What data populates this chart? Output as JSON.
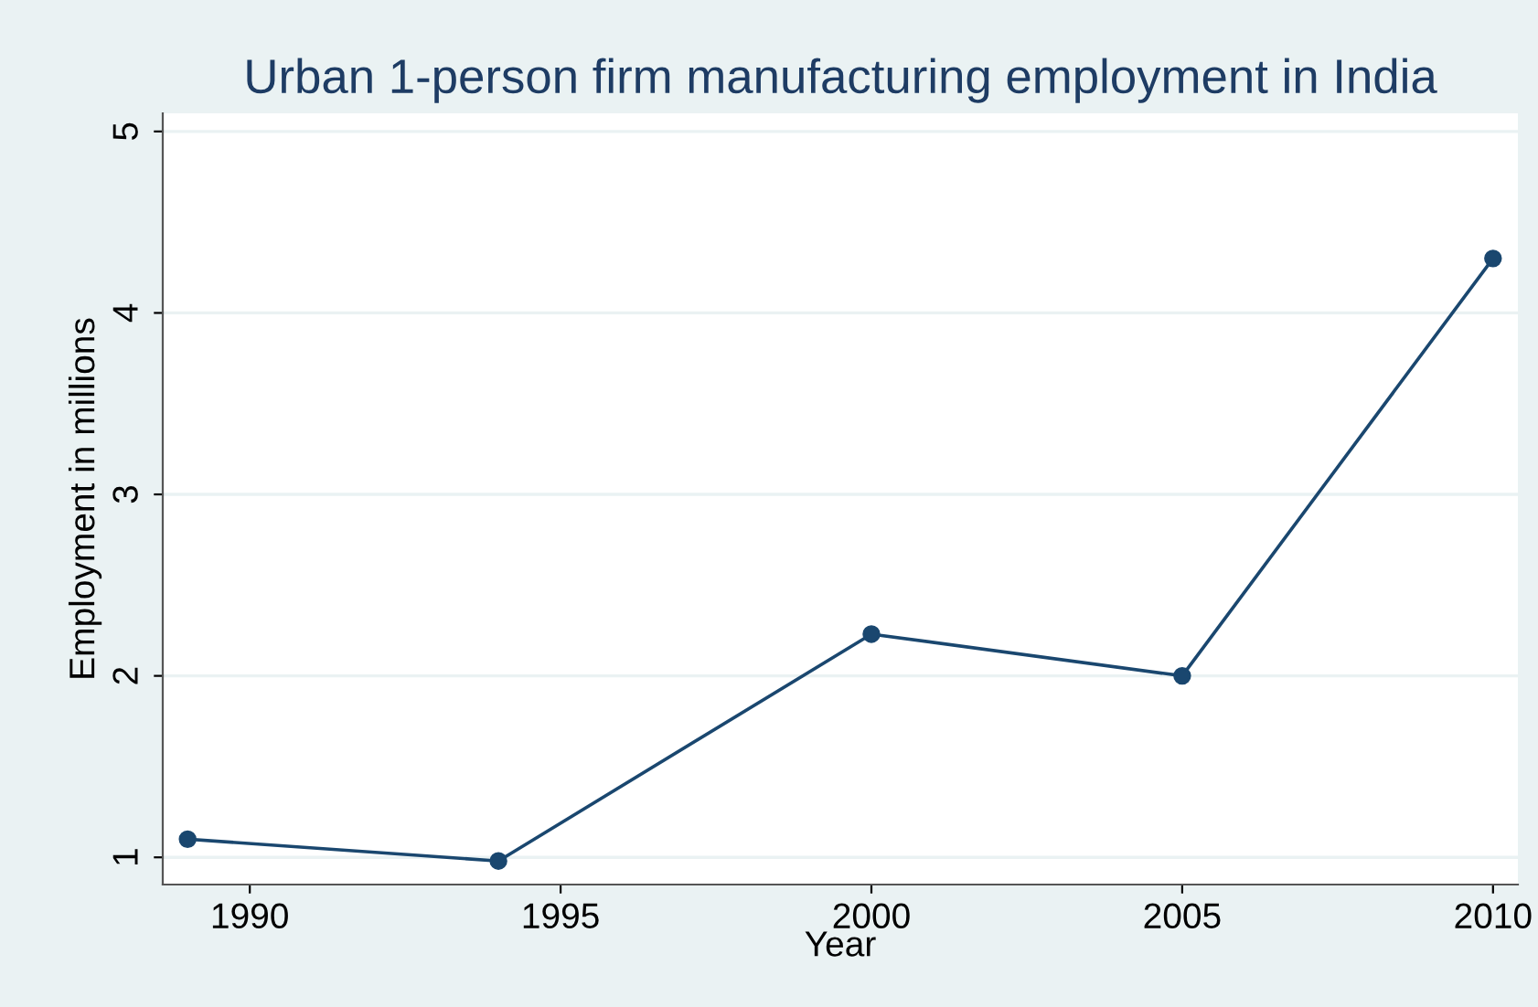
{
  "chart_data": {
    "type": "line",
    "title": "Urban 1-person firm manufacturing employment in India",
    "xlabel": "Year",
    "ylabel": "Employment in millions",
    "x": [
      1989,
      1994,
      2000,
      2005,
      2010
    ],
    "series": [
      {
        "color": "#1a476f",
        "values": [
          1.1,
          0.98,
          2.23,
          2.0,
          4.3
        ]
      }
    ],
    "xlim": [
      1988.6,
      2010.4
    ],
    "xticks": [
      1990,
      1995,
      2000,
      2005,
      2010
    ],
    "ylim": [
      0.85,
      5.1
    ],
    "yticks": [
      1,
      2,
      3,
      4,
      5
    ],
    "grid": "y",
    "marker": "circle",
    "line_style": "solid"
  }
}
